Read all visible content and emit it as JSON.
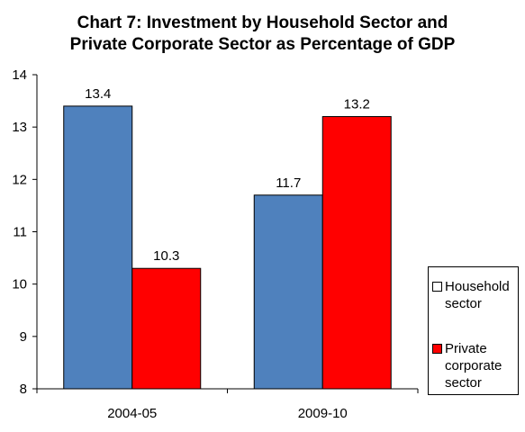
{
  "chart_data": {
    "type": "bar",
    "title_lines": [
      "Chart 7: Investment by Household Sector and",
      "Private Corporate Sector as Percentage of GDP"
    ],
    "categories": [
      "2004-05",
      "2009-10"
    ],
    "series": [
      {
        "name": "Household sector",
        "values": [
          13.4,
          11.7
        ],
        "color": "#4F81BD"
      },
      {
        "name": "Private corporate sector",
        "values": [
          10.3,
          13.2
        ],
        "color": "#FF0000"
      }
    ],
    "ylim": [
      8,
      14
    ],
    "yticks": [
      8,
      9,
      10,
      11,
      12,
      13,
      14
    ],
    "grid": false,
    "legend_position": "right"
  }
}
